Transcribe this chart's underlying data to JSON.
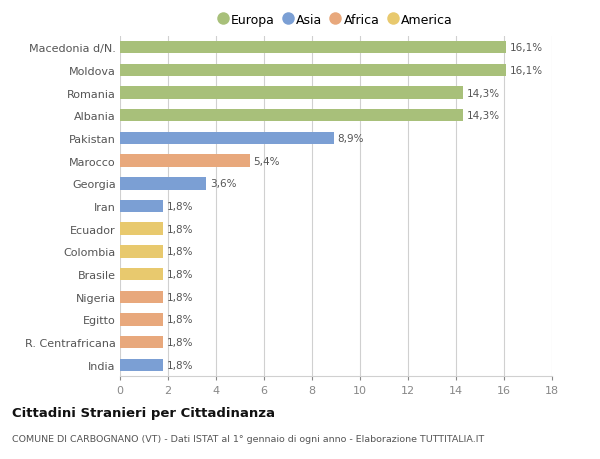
{
  "categories": [
    "Macedonia d/N.",
    "Moldova",
    "Romania",
    "Albania",
    "Pakistan",
    "Marocco",
    "Georgia",
    "Iran",
    "Ecuador",
    "Colombia",
    "Brasile",
    "Nigeria",
    "Egitto",
    "R. Centrafricana",
    "India"
  ],
  "values": [
    16.1,
    16.1,
    14.3,
    14.3,
    8.9,
    5.4,
    3.6,
    1.8,
    1.8,
    1.8,
    1.8,
    1.8,
    1.8,
    1.8,
    1.8
  ],
  "labels": [
    "16,1%",
    "16,1%",
    "14,3%",
    "14,3%",
    "8,9%",
    "5,4%",
    "3,6%",
    "1,8%",
    "1,8%",
    "1,8%",
    "1,8%",
    "1,8%",
    "1,8%",
    "1,8%",
    "1,8%"
  ],
  "colors": [
    "#a8c07a",
    "#a8c07a",
    "#a8c07a",
    "#a8c07a",
    "#7b9fd4",
    "#e8a87c",
    "#7b9fd4",
    "#7b9fd4",
    "#e8c96e",
    "#e8c96e",
    "#e8c96e",
    "#e8a87c",
    "#e8a87c",
    "#e8a87c",
    "#7b9fd4"
  ],
  "legend_labels": [
    "Europa",
    "Asia",
    "Africa",
    "America"
  ],
  "legend_colors": [
    "#a8c07a",
    "#7b9fd4",
    "#e8a87c",
    "#e8c96e"
  ],
  "title": "Cittadini Stranieri per Cittadinanza",
  "subtitle": "COMUNE DI CARBOGNANO (VT) - Dati ISTAT al 1° gennaio di ogni anno - Elaborazione TUTTITALIA.IT",
  "xlim": [
    0,
    18
  ],
  "xticks": [
    0,
    2,
    4,
    6,
    8,
    10,
    12,
    14,
    16,
    18
  ],
  "bg_color": "#ffffff",
  "grid_color": "#d0d0d0"
}
